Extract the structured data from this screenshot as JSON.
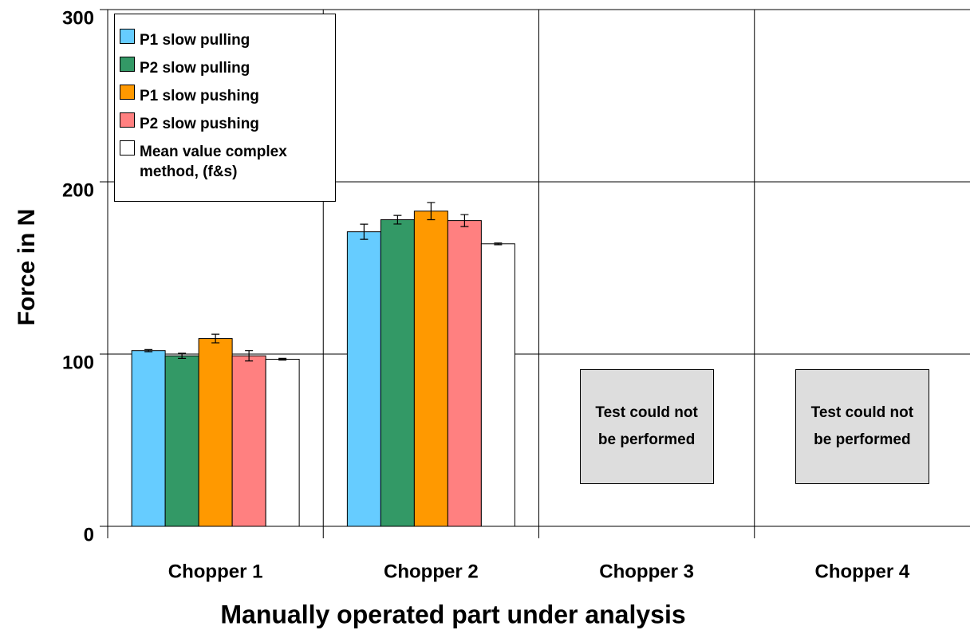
{
  "chart_data": {
    "type": "bar",
    "x_label": "Manually operated part under analysis",
    "y_label": "Force in N",
    "categories": [
      "Chopper 1",
      "Chopper 2",
      "Chopper 3",
      "Chopper 4"
    ],
    "series": [
      {
        "name": "P1 slow pulling",
        "color": "#66ccff",
        "values": [
          102,
          171,
          null,
          null
        ],
        "errors": [
          0.6,
          4.4,
          null,
          null
        ]
      },
      {
        "name": "P2 slow pulling",
        "color": "#339966",
        "values": [
          99,
          178,
          null,
          null
        ],
        "errors": [
          1.5,
          2.5,
          null,
          null
        ]
      },
      {
        "name": "P1 slow pushing",
        "color": "#ff9900",
        "values": [
          109,
          183,
          null,
          null
        ],
        "errors": [
          2.5,
          5,
          null,
          null
        ]
      },
      {
        "name": "P2 slow pushing",
        "color": "#ff8080",
        "values": [
          99,
          177.5,
          null,
          null
        ],
        "errors": [
          3,
          3.5,
          null,
          null
        ]
      },
      {
        "name": "Mean value complex method, (f&s)",
        "color": "#ffffff",
        "values": [
          97,
          164,
          null,
          null
        ],
        "errors": [
          0.5,
          0.5,
          null,
          null
        ]
      }
    ],
    "annotations": [
      "Test could not be performed",
      "Test could not be performed"
    ],
    "ylim": [
      0,
      300
    ],
    "yticks": [
      0,
      100,
      200,
      300
    ],
    "grid": true,
    "legend": "upper left"
  }
}
